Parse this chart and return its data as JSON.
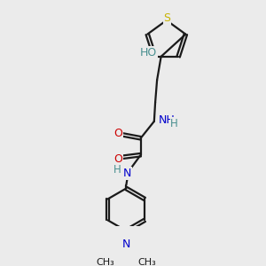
{
  "background_color": "#ebebeb",
  "bond_color": "#1a1a1a",
  "S_color": "#c8b400",
  "O_color": "#cc0000",
  "N_color": "#0000cc",
  "H_color": "#4a9090",
  "figsize": [
    3.0,
    3.0
  ],
  "dpi": 100,
  "xlim": [
    0,
    10
  ],
  "ylim": [
    0,
    10
  ]
}
